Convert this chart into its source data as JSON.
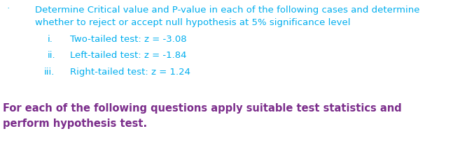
{
  "bg_color": "#ffffff",
  "cyan_color": "#00AEEF",
  "purple_color": "#7B2D8B",
  "bullet": "˙",
  "line1": "Determine Critical value and P-value in each of the following cases and determine",
  "line2": "whether to reject or accept null hypothesis at 5% significance level",
  "item_i_num": "i.",
  "item_i_text": "Two-tailed test: z = -3.08",
  "item_ii_num": "ii.",
  "item_ii_text": "Left-tailed test: z = -1.84",
  "item_iii_num": "iii.",
  "item_iii_text": "Right-tailed test: z = 1.24",
  "bold_line1": "For each of the following questions apply suitable test statistics and",
  "bold_line2": "perform hypothesis test.",
  "font_size_main": 9.5,
  "font_size_bold": 10.5
}
